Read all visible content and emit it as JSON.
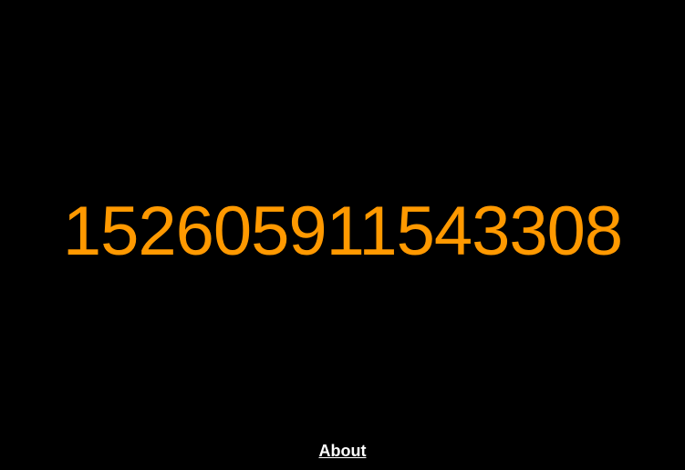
{
  "main": {
    "counter_value": "152605911543308"
  },
  "footer": {
    "about_label": "About"
  },
  "colors": {
    "background": "#000000",
    "counter": "#ff9900",
    "link": "#ffffff"
  }
}
